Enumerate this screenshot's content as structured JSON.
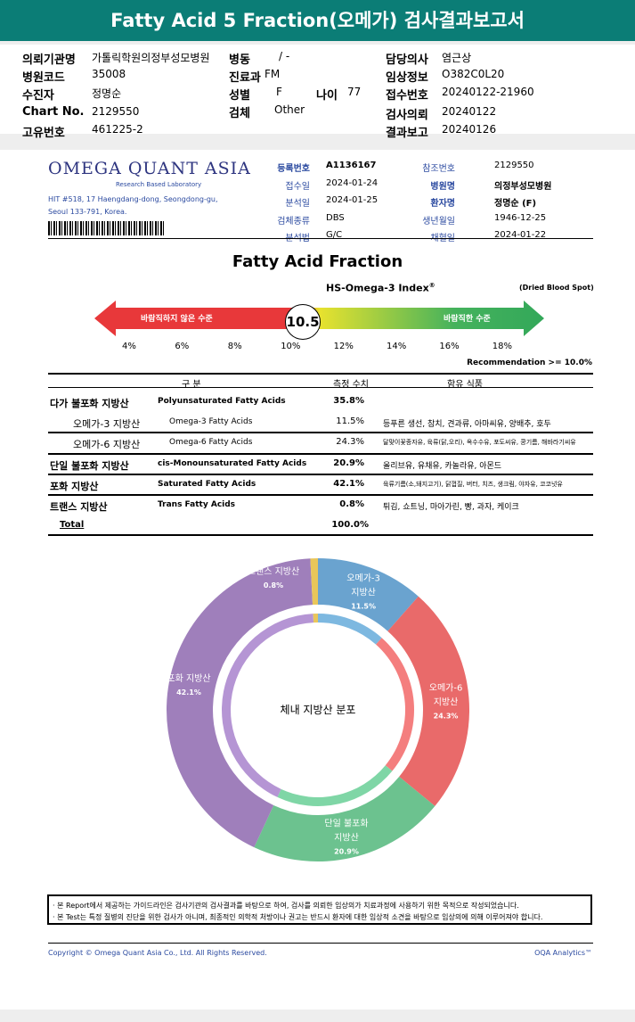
{
  "title": "Fatty Acid 5 Fraction(오메가) 검사결과보고서",
  "patient_info": [
    {
      "label": "의뢰기관명",
      "value": "가톨릭학원의정부성모병원"
    },
    {
      "label": "병원코드",
      "value": "35008"
    },
    {
      "label": "수진자",
      "value": "정명순"
    },
    {
      "label": "Chart No.",
      "value": "2129550"
    },
    {
      "label": "고유번호",
      "value": "461225-2"
    },
    {
      "label": "병동",
      "value": "/ -"
    },
    {
      "label": "진료과",
      "value": "FM"
    },
    {
      "label": "성별",
      "value": "F"
    },
    {
      "label": "나이",
      "value": "77"
    },
    {
      "label": "검체",
      "value": "Other"
    },
    {
      "label": "담당의사",
      "value": "염근상"
    },
    {
      "label": "임상정보",
      "value": "O382C0L20"
    },
    {
      "label": "접수번호",
      "value": "20240122-21960"
    },
    {
      "label": "검사의뢰",
      "value": "20240122"
    },
    {
      "label": "결과보고",
      "value": "20240126"
    }
  ],
  "lab": {
    "name": "OMEGA QUANT ASIA",
    "tagline": "Research Based Laboratory",
    "address1": "HIT #518, 17 Haengdang-dong, Seongdong-gu,",
    "address2": "Seoul 133-791, Korea."
  },
  "meta": [
    {
      "label": "등록번호",
      "value": "A1136167"
    },
    {
      "label": "접수일",
      "value": "2024-01-24"
    },
    {
      "label": "분석일",
      "value": "2024-01-25"
    },
    {
      "label": "검체종류",
      "value": "DBS"
    },
    {
      "label": "분석법",
      "value": "G/C"
    },
    {
      "label": "참조번호",
      "value": "2129550"
    },
    {
      "label": "병원명",
      "value": "의정부성모병원"
    },
    {
      "label": "환자명",
      "value": "정명순 (F)"
    },
    {
      "label": "생년월일",
      "value": "1946-12-25"
    },
    {
      "label": "채혈일",
      "value": "2024-01-22"
    }
  ],
  "section_title": "Fatty Acid Fraction",
  "index": {
    "title": "HS-Omega-3 Index",
    "sup": "®",
    "sample": "(Dried Blood Spot)",
    "value": 10.5,
    "value_label": "10.5",
    "bad_label": "바람직하지 않은 수준",
    "good_label": "바람직한 수준",
    "ticks": [
      "4%",
      "6%",
      "8%",
      "10%",
      "12%",
      "14%",
      "16%",
      "18%"
    ],
    "recommendation": "Recommendation  >= 10.0%",
    "colors": {
      "bad": "#e8383a",
      "mid": "#e8e22e",
      "good": "#33a85a"
    }
  },
  "table": {
    "headers": [
      "구 분",
      "측정 수치",
      "함유 식품"
    ],
    "rows": [
      {
        "ko": "다가 불포화 지방산",
        "en": "Polyunsaturated Fatty Acids",
        "value": "35.8%",
        "foods": ""
      },
      {
        "ko": "오메가-3 지방산",
        "en": "Omega-3 Fatty Acids",
        "value": "11.5%",
        "foods": "등푸른 생선, 참치, 견과류, 아마씨유, 양배추, 호두"
      },
      {
        "ko": "오메가-6 지방산",
        "en": "Omega-6 Fatty Acids",
        "value": "24.3%",
        "foods": "달맞이꽃종자유, 육류(닭,오리), 옥수수유, 포도씨유, 콩기름, 해바라기씨유"
      },
      {
        "ko": "단일 불포화 지방산",
        "en": "cis-Monounsaturated Fatty Acids",
        "value": "20.9%",
        "foods": "올리브유, 유채유, 카놀라유, 아몬드"
      },
      {
        "ko": "포화 지방산",
        "en": "Saturated Fatty Acids",
        "value": "42.1%",
        "foods": "육류기름(소,돼지고기), 닭껍질, 버터, 치즈, 생크림, 야자유, 코코넛유"
      },
      {
        "ko": "트랜스 지방산",
        "en": "Trans Fatty Acids",
        "value": "0.8%",
        "foods": "튀김, 쇼트닝, 마아가린, 빵, 과자, 케이크"
      }
    ],
    "total_label": "Total",
    "total_value": "100.0%"
  },
  "chart_data": {
    "type": "pie",
    "title": "체내 지방산 분포",
    "categories": [
      "오메가-3 지방산",
      "오메가-6 지방산",
      "단일 불포화 지방산",
      "포화 지방산",
      "트랜스 지방산"
    ],
    "label_lines": [
      [
        "오메가-3",
        "지방산"
      ],
      [
        "오메가-6",
        "지방산"
      ],
      [
        "단일 불포화",
        "지방산"
      ],
      [
        "포화 지방산"
      ],
      [
        "트랜스 지방산"
      ]
    ],
    "values": [
      11.5,
      24.3,
      20.9,
      42.1,
      0.8
    ],
    "value_labels": [
      "11.5%",
      "24.3%",
      "20.9%",
      "42.1%",
      "0.8%"
    ],
    "colors": [
      "#6aa3cf",
      "#e96a6a",
      "#6cc28f",
      "#9f7fbb",
      "#e9c65a"
    ],
    "inner_colors": [
      "#7db8e0",
      "#f47e7e",
      "#7fd6a6",
      "#b595d4",
      "#e9c65a"
    ]
  },
  "disclaimer": [
    "· 본 Report에서 제공하는 가이드라인은 검사기관의 검사결과를 바탕으로 하여, 검사를 의뢰한 임상의가 치료과정에 사용하기 위한 목적으로 작성되었습니다.",
    "· 본 Test는 특정 질병의 진단을 위한 검사가 아니며, 최종적인 의학적 처방이나 권고는 반드시 환자에 대한 임상적 소견을 바탕으로 임상의에 의해 이루어져야 합니다."
  ],
  "footer": {
    "copyright": "Copyright © Omega Quant Asia Co., Ltd.  All Rights Reserved.",
    "brand": "OQA Analytics™"
  }
}
